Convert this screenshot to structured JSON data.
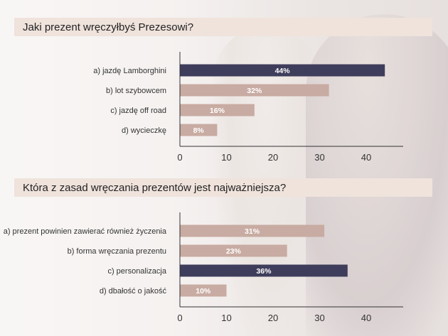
{
  "colors": {
    "highlight": "#3f3d5c",
    "normal": "#c8aba2",
    "axis": "#333333",
    "title_bg": "#efe3dc"
  },
  "chart_data": [
    {
      "type": "bar",
      "orientation": "horizontal",
      "title": "Jaki prezent wręczyłbyś Prezesowi?",
      "categories": [
        "a)  jazdę Lamborghini",
        "b) lot szybowcem",
        "c) jazdę off road",
        "d) wycieczkę"
      ],
      "values": [
        44,
        32,
        16,
        8
      ],
      "value_labels": [
        "44%",
        "32%",
        "16%",
        "8%"
      ],
      "highlight_index": 0,
      "xlim": [
        0,
        48
      ],
      "xticks": [
        0,
        10,
        20,
        30,
        40
      ],
      "xtick_labels": [
        "0",
        "10",
        "20",
        "30",
        "40"
      ]
    },
    {
      "type": "bar",
      "orientation": "horizontal",
      "title": "Która z zasad wręczania prezentów jest najważniejsza?",
      "categories": [
        "a) prezent powinien zawierać również życzenia",
        "b) forma wręczania prezentu",
        "c) personalizacja",
        "d) dbałość o jakość"
      ],
      "values": [
        31,
        23,
        36,
        10
      ],
      "value_labels": [
        "31%",
        "23%",
        "36%",
        "10%"
      ],
      "highlight_index": 2,
      "xlim": [
        0,
        48
      ],
      "xticks": [
        0,
        10,
        20,
        30,
        40
      ],
      "xtick_labels": [
        "0",
        "10",
        "20",
        "30",
        "40"
      ]
    }
  ]
}
